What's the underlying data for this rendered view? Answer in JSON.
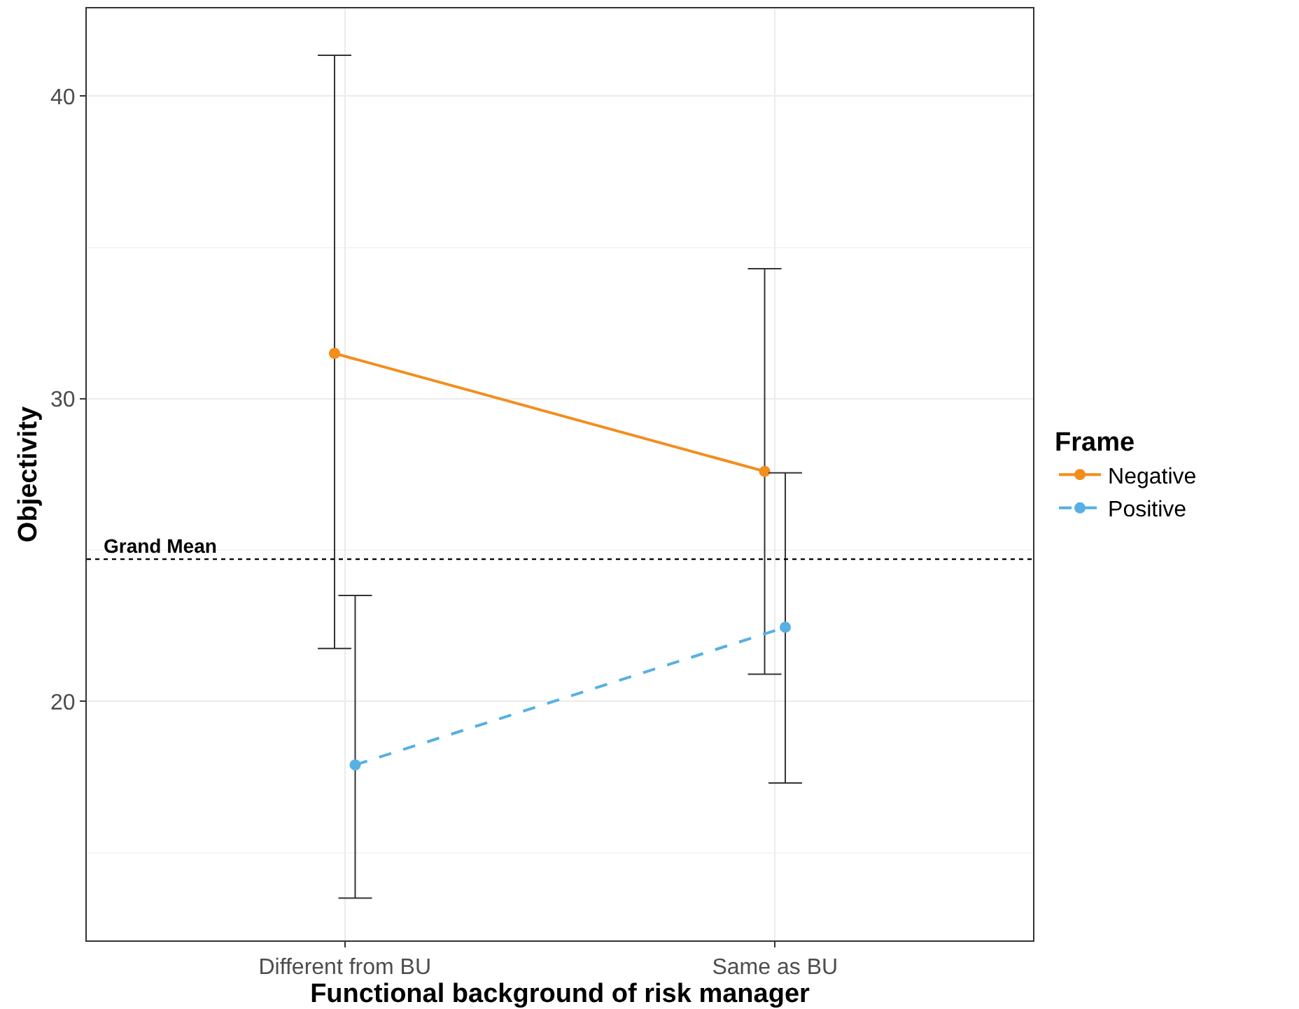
{
  "chart_data": {
    "type": "line",
    "xlabel": "Functional background of risk manager",
    "ylabel": "Objectivity",
    "legend_title": "Frame",
    "categories": [
      "Different from BU",
      "Same as BU"
    ],
    "series": [
      {
        "name": "Negative",
        "color": "#f28e1c",
        "values": [
          31.5,
          27.6
        ],
        "errors": [
          [
            21.75,
            41.35
          ],
          [
            20.9,
            34.3
          ]
        ],
        "line_style": "solid"
      },
      {
        "name": "Positive",
        "color": "#56b0e4",
        "values": [
          17.9,
          22.45
        ],
        "errors": [
          [
            13.5,
            23.5
          ],
          [
            17.3,
            27.55
          ]
        ],
        "line_style": "dashed"
      }
    ],
    "ylim": [
      12.1,
      42.9
    ],
    "yticks": [
      20,
      30,
      40
    ],
    "grid": true,
    "legend": "right",
    "marker": "circle",
    "ref_lines": [
      {
        "axis": "y",
        "value": 24.7,
        "label": "Grand Mean",
        "line_style": "dotted",
        "color": "#000000"
      }
    ]
  }
}
